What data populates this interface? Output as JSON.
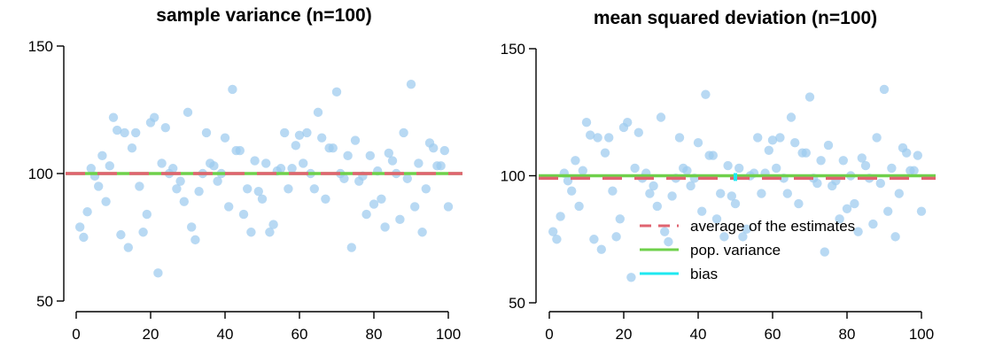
{
  "chart_data": [
    {
      "type": "scatter",
      "title": "sample variance (n=100)",
      "xlabel": "",
      "ylabel": "",
      "xlim": [
        0,
        100
      ],
      "ylim": [
        50,
        150
      ],
      "x_ticks": [
        0,
        20,
        40,
        60,
        80,
        100
      ],
      "y_ticks": [
        50,
        100,
        150
      ],
      "grid": false,
      "series": [
        {
          "points": [
            [
              1,
              79
            ],
            [
              2,
              75
            ],
            [
              3,
              85
            ],
            [
              4,
              102
            ],
            [
              5,
              99
            ],
            [
              6,
              95
            ],
            [
              7,
              107
            ],
            [
              8,
              89
            ],
            [
              9,
              103
            ],
            [
              10,
              122
            ],
            [
              11,
              117
            ],
            [
              12,
              76
            ],
            [
              13,
              116
            ],
            [
              14,
              71
            ],
            [
              15,
              110
            ],
            [
              16,
              116
            ],
            [
              17,
              95
            ],
            [
              18,
              77
            ],
            [
              19,
              84
            ],
            [
              20,
              120
            ],
            [
              21,
              122
            ],
            [
              22,
              61
            ],
            [
              23,
              104
            ],
            [
              24,
              118
            ],
            [
              25,
              100
            ],
            [
              26,
              102
            ],
            [
              27,
              94
            ],
            [
              28,
              97
            ],
            [
              29,
              89
            ],
            [
              30,
              124
            ],
            [
              31,
              79
            ],
            [
              32,
              74
            ],
            [
              33,
              93
            ],
            [
              34,
              100
            ],
            [
              35,
              116
            ],
            [
              36,
              104
            ],
            [
              37,
              103
            ],
            [
              38,
              97
            ],
            [
              39,
              100
            ],
            [
              40,
              114
            ],
            [
              41,
              87
            ],
            [
              42,
              133
            ],
            [
              43,
              109
            ],
            [
              44,
              109
            ],
            [
              45,
              84
            ],
            [
              46,
              94
            ],
            [
              47,
              77
            ],
            [
              48,
              105
            ],
            [
              49,
              93
            ],
            [
              50,
              90
            ],
            [
              51,
              104
            ],
            [
              52,
              77
            ],
            [
              53,
              80
            ],
            [
              54,
              101
            ],
            [
              55,
              102
            ],
            [
              56,
              116
            ],
            [
              57,
              94
            ],
            [
              58,
              102
            ],
            [
              59,
              111
            ],
            [
              60,
              115
            ],
            [
              61,
              104
            ],
            [
              62,
              116
            ],
            [
              63,
              100
            ],
            [
              64,
              94
            ],
            [
              65,
              124
            ],
            [
              66,
              114
            ],
            [
              67,
              90
            ],
            [
              68,
              110
            ],
            [
              69,
              110
            ],
            [
              70,
              132
            ],
            [
              71,
              100
            ],
            [
              72,
              98
            ],
            [
              73,
              107
            ],
            [
              74,
              71
            ],
            [
              75,
              113
            ],
            [
              76,
              97
            ],
            [
              77,
              99
            ],
            [
              78,
              84
            ],
            [
              79,
              107
            ],
            [
              80,
              88
            ],
            [
              81,
              101
            ],
            [
              82,
              90
            ],
            [
              83,
              79
            ],
            [
              84,
              108
            ],
            [
              85,
              105
            ],
            [
              86,
              100
            ],
            [
              87,
              82
            ],
            [
              88,
              116
            ],
            [
              89,
              98
            ],
            [
              90,
              135
            ],
            [
              91,
              87
            ],
            [
              92,
              104
            ],
            [
              93,
              77
            ],
            [
              94,
              94
            ],
            [
              95,
              112
            ],
            [
              96,
              110
            ],
            [
              97,
              103
            ],
            [
              98,
              103
            ],
            [
              99,
              109
            ],
            [
              100,
              87
            ]
          ]
        }
      ],
      "reference_lines": [
        {
          "name": "average of the estimates",
          "value": 100,
          "style": "dashed",
          "color": "#e06470"
        },
        {
          "name": "pop. variance",
          "value": 100,
          "style": "solid",
          "color": "#6fd04b"
        }
      ]
    },
    {
      "type": "scatter",
      "title": "mean squared deviation (n=100)",
      "xlabel": "",
      "ylabel": "",
      "xlim": [
        0,
        100
      ],
      "ylim": [
        50,
        150
      ],
      "x_ticks": [
        0,
        20,
        40,
        60,
        80,
        100
      ],
      "y_ticks": [
        50,
        100,
        150
      ],
      "grid": false,
      "legend_position": "bottom-right",
      "series": [
        {
          "points": [
            [
              1,
              78
            ],
            [
              2,
              75
            ],
            [
              3,
              84
            ],
            [
              4,
              101
            ],
            [
              5,
              98
            ],
            [
              6,
              94
            ],
            [
              7,
              106
            ],
            [
              8,
              88
            ],
            [
              9,
              102
            ],
            [
              10,
              121
            ],
            [
              11,
              116
            ],
            [
              12,
              75
            ],
            [
              13,
              115
            ],
            [
              14,
              71
            ],
            [
              15,
              109
            ],
            [
              16,
              115
            ],
            [
              17,
              94
            ],
            [
              18,
              76
            ],
            [
              19,
              83
            ],
            [
              20,
              119
            ],
            [
              21,
              121
            ],
            [
              22,
              60
            ],
            [
              23,
              103
            ],
            [
              24,
              117
            ],
            [
              25,
              99
            ],
            [
              26,
              101
            ],
            [
              27,
              93
            ],
            [
              28,
              96
            ],
            [
              29,
              88
            ],
            [
              30,
              123
            ],
            [
              31,
              78
            ],
            [
              32,
              74
            ],
            [
              33,
              92
            ],
            [
              34,
              99
            ],
            [
              35,
              115
            ],
            [
              36,
              103
            ],
            [
              37,
              102
            ],
            [
              38,
              96
            ],
            [
              39,
              99
            ],
            [
              40,
              113
            ],
            [
              41,
              86
            ],
            [
              42,
              132
            ],
            [
              43,
              108
            ],
            [
              44,
              108
            ],
            [
              45,
              83
            ],
            [
              46,
              93
            ],
            [
              47,
              76
            ],
            [
              48,
              104
            ],
            [
              49,
              92
            ],
            [
              50,
              89
            ],
            [
              51,
              103
            ],
            [
              52,
              76
            ],
            [
              53,
              79
            ],
            [
              54,
              100
            ],
            [
              55,
              101
            ],
            [
              56,
              115
            ],
            [
              57,
              93
            ],
            [
              58,
              101
            ],
            [
              59,
              110
            ],
            [
              60,
              114
            ],
            [
              61,
              103
            ],
            [
              62,
              115
            ],
            [
              63,
              99
            ],
            [
              64,
              93
            ],
            [
              65,
              123
            ],
            [
              66,
              113
            ],
            [
              67,
              89
            ],
            [
              68,
              109
            ],
            [
              69,
              109
            ],
            [
              70,
              131
            ],
            [
              71,
              99
            ],
            [
              72,
              97
            ],
            [
              73,
              106
            ],
            [
              74,
              70
            ],
            [
              75,
              112
            ],
            [
              76,
              96
            ],
            [
              77,
              98
            ],
            [
              78,
              83
            ],
            [
              79,
              106
            ],
            [
              80,
              87
            ],
            [
              81,
              100
            ],
            [
              82,
              89
            ],
            [
              83,
              78
            ],
            [
              84,
              107
            ],
            [
              85,
              104
            ],
            [
              86,
              99
            ],
            [
              87,
              81
            ],
            [
              88,
              115
            ],
            [
              89,
              97
            ],
            [
              90,
              134
            ],
            [
              91,
              86
            ],
            [
              92,
              103
            ],
            [
              93,
              76
            ],
            [
              94,
              93
            ],
            [
              95,
              111
            ],
            [
              96,
              109
            ],
            [
              97,
              102
            ],
            [
              98,
              102
            ],
            [
              99,
              108
            ],
            [
              100,
              86
            ]
          ]
        }
      ],
      "reference_lines": [
        {
          "name": "average of the estimates",
          "value": 99,
          "style": "dashed",
          "color": "#e06470"
        },
        {
          "name": "pop. variance",
          "value": 100,
          "style": "solid",
          "color": "#6fd04b"
        }
      ],
      "bias": {
        "name": "bias",
        "x": 50,
        "from": 99,
        "to": 100,
        "color": "#1fe8f0"
      },
      "legend": [
        {
          "label": "average of the estimates",
          "style": "dashed",
          "color": "#e06470"
        },
        {
          "label": " pop. variance",
          "style": "solid",
          "color": "#6fd04b"
        },
        {
          "label": "bias",
          "style": "solid",
          "color": "#1fe8f0"
        }
      ]
    }
  ]
}
